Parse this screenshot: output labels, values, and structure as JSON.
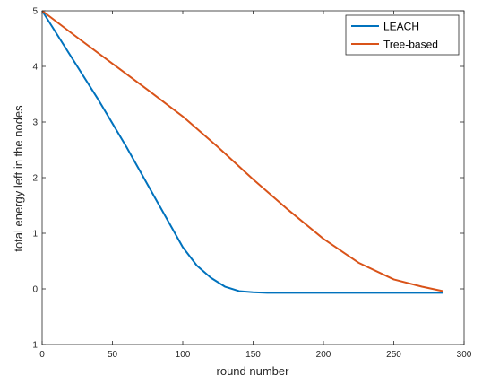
{
  "chart_data": {
    "type": "line",
    "xlabel": "round number",
    "ylabel": "total energy left in the nodes",
    "xlim": [
      0,
      300
    ],
    "ylim": [
      -1,
      5
    ],
    "xticks": [
      0,
      50,
      100,
      150,
      200,
      250,
      300
    ],
    "yticks": [
      -1,
      0,
      1,
      2,
      3,
      4,
      5
    ],
    "grid": false,
    "legend_position": "top-right",
    "series": [
      {
        "name": "LEACH",
        "color": "#0072BD",
        "x": [
          0,
          20,
          40,
          60,
          80,
          100,
          110,
          120,
          130,
          140,
          150,
          160,
          200,
          250,
          285
        ],
        "y": [
          5,
          4.2,
          3.4,
          2.55,
          1.65,
          0.75,
          0.42,
          0.2,
          0.04,
          -0.04,
          -0.06,
          -0.07,
          -0.07,
          -0.07,
          -0.07
        ]
      },
      {
        "name": "Tree-based",
        "color": "#D95319",
        "x": [
          0,
          25,
          50,
          75,
          100,
          125,
          150,
          175,
          200,
          225,
          250,
          270,
          285
        ],
        "y": [
          5,
          4.52,
          4.05,
          3.58,
          3.1,
          2.55,
          1.97,
          1.42,
          0.9,
          0.47,
          0.17,
          0.04,
          -0.04
        ]
      }
    ]
  }
}
